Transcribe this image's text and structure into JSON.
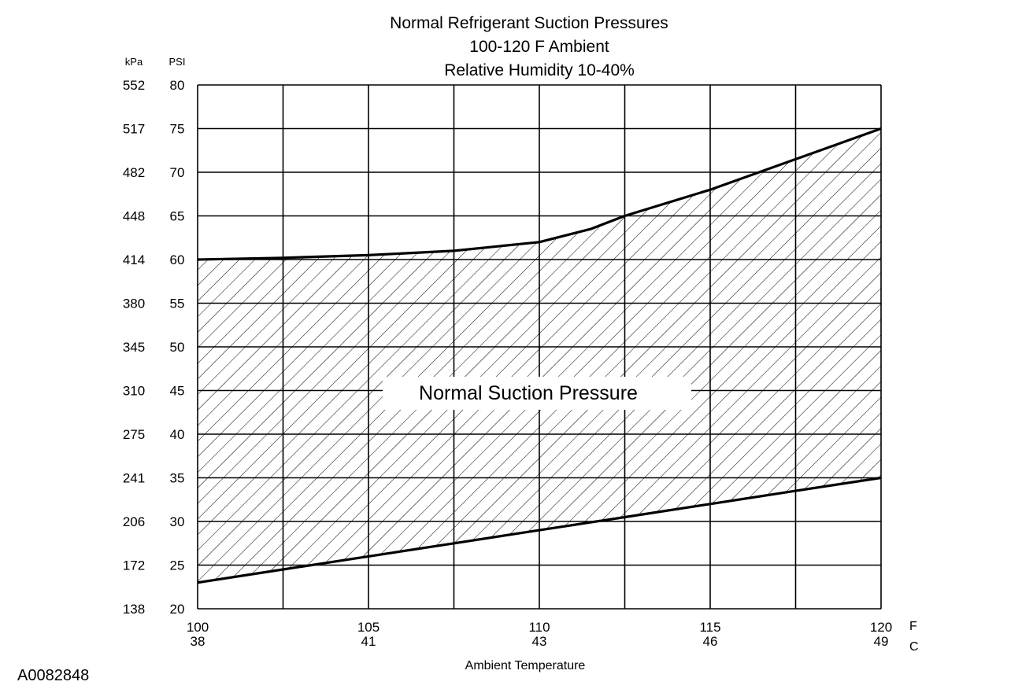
{
  "chart_data": {
    "type": "area",
    "title": "Normal Refrigerant Suction Pressures",
    "subtitle_lines": [
      "100-120 F Ambient",
      "Relative Humidity 10-40%"
    ],
    "xlabel": "Ambient Temperature",
    "x_unit_primary": "F",
    "x_unit_secondary": "C",
    "y_unit_primary": "PSI",
    "y_unit_secondary": "kPa",
    "region_label": "Normal Suction Pressure",
    "figure_id": "A0082848",
    "xlim": [
      100,
      120
    ],
    "ylim": [
      20,
      80
    ],
    "grid": true,
    "x_ticks": [
      {
        "f": "100",
        "c": "38"
      },
      {
        "f": "105",
        "c": "41"
      },
      {
        "f": "110",
        "c": "43"
      },
      {
        "f": "115",
        "c": "46"
      },
      {
        "f": "120",
        "c": "49"
      }
    ],
    "y_ticks": [
      {
        "psi": "80",
        "kpa": "552"
      },
      {
        "psi": "75",
        "kpa": "517"
      },
      {
        "psi": "70",
        "kpa": "482"
      },
      {
        "psi": "65",
        "kpa": "448"
      },
      {
        "psi": "60",
        "kpa": "414"
      },
      {
        "psi": "55",
        "kpa": "380"
      },
      {
        "psi": "50",
        "kpa": "345"
      },
      {
        "psi": "45",
        "kpa": "310"
      },
      {
        "psi": "40",
        "kpa": "275"
      },
      {
        "psi": "35",
        "kpa": "241"
      },
      {
        "psi": "30",
        "kpa": "206"
      },
      {
        "psi": "25",
        "kpa": "172"
      },
      {
        "psi": "20",
        "kpa": "138"
      }
    ],
    "series": [
      {
        "x": [
          100,
          102.5,
          105,
          107.5,
          110,
          111.5,
          112.5,
          115,
          117.5,
          120
        ],
        "y": [
          60,
          60.2,
          60.5,
          61,
          62,
          63.5,
          65,
          68,
          71.5,
          75
        ]
      },
      {
        "x": [
          100,
          102.5,
          105,
          107.5,
          110,
          112.5,
          115,
          117.5,
          120
        ],
        "y": [
          23,
          24.5,
          26,
          27.5,
          29,
          30.5,
          32,
          33.5,
          35
        ]
      }
    ]
  }
}
